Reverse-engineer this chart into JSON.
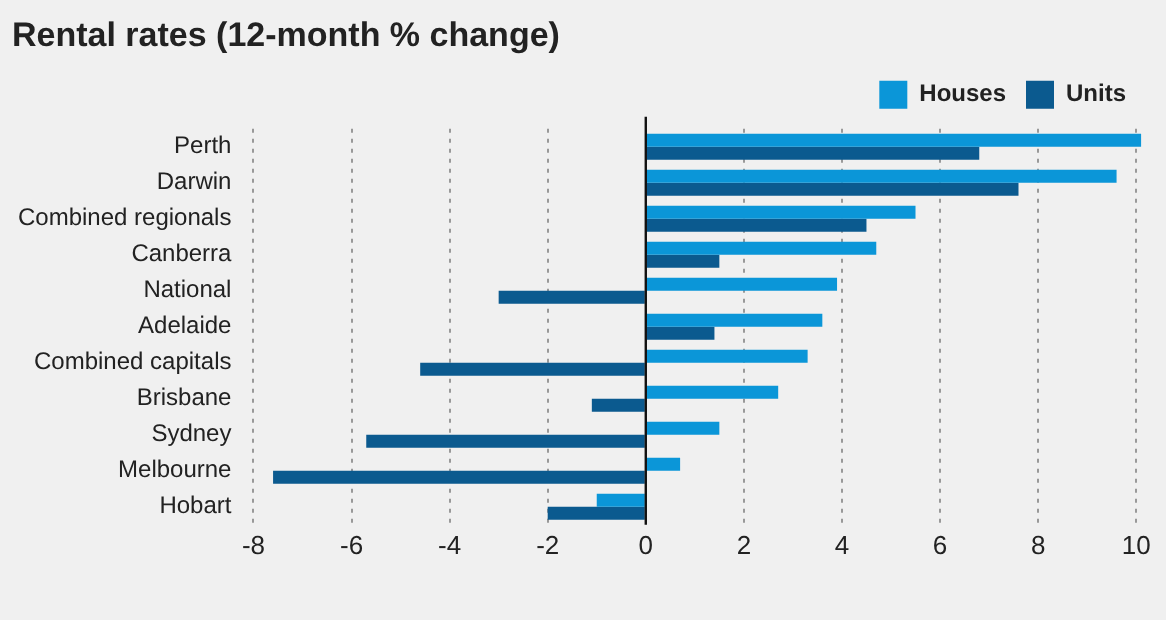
{
  "chart_data": {
    "type": "bar",
    "orientation": "horizontal",
    "title": "Rental rates (12-month % change)",
    "categories": [
      "Perth",
      "Darwin",
      "Combined regionals",
      "Canberra",
      "National",
      "Adelaide",
      "Combined capitals",
      "Brisbane",
      "Sydney",
      "Melbourne",
      "Hobart"
    ],
    "series": [
      {
        "name": "Houses",
        "color": "#0b96d8",
        "values": [
          10.1,
          9.6,
          5.5,
          4.7,
          3.9,
          3.6,
          3.3,
          2.7,
          1.5,
          0.7,
          -1.0
        ]
      },
      {
        "name": "Units",
        "color": "#0b5a8f",
        "values": [
          6.8,
          7.6,
          4.5,
          1.5,
          -3.0,
          1.4,
          -4.6,
          -1.1,
          -5.7,
          -7.6,
          -2.0
        ]
      }
    ],
    "xlim": [
      -8,
      10.2
    ],
    "xticks": [
      -8,
      -6,
      -4,
      -2,
      0,
      2,
      4,
      6,
      8,
      10
    ],
    "grid": "x",
    "legend": "top right"
  }
}
